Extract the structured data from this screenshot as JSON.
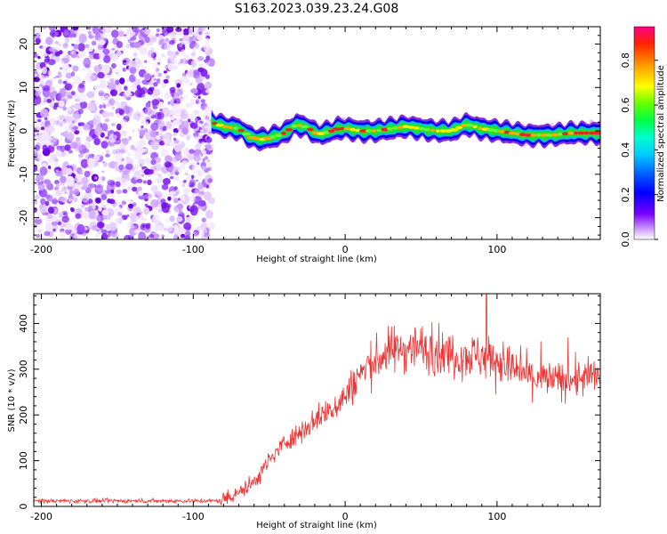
{
  "title": "S163.2023.039.23.24.G08",
  "chart_data": [
    {
      "type": "heatmap",
      "name": "spectrogram",
      "xlabel": "Height of straight line (km)",
      "ylabel": "Frequency (Hz)",
      "xlim": [
        -205,
        168
      ],
      "ylim": [
        -25,
        24
      ],
      "xticks": [
        -200,
        -100,
        0,
        100
      ],
      "xtick_labels": [
        "-200",
        "-100",
        "0",
        "100"
      ],
      "yticks": [
        20,
        10,
        0,
        -10,
        -20
      ],
      "ytick_labels": [
        "20",
        "10",
        "0",
        "-10",
        "-20"
      ],
      "noise_region_x": [
        -205,
        -88
      ],
      "signal_start_x": -88,
      "tone_frequency_track": [
        {
          "x": -88,
          "f": 2.0
        },
        {
          "x": -80,
          "f": 1.0
        },
        {
          "x": -70,
          "f": 0.5
        },
        {
          "x": -62,
          "f": -1.5
        },
        {
          "x": -55,
          "f": -2.0
        },
        {
          "x": -45,
          "f": -1.2
        },
        {
          "x": -40,
          "f": -0.5
        },
        {
          "x": -32,
          "f": 1.5
        },
        {
          "x": -25,
          "f": 0.8
        },
        {
          "x": -18,
          "f": -0.8
        },
        {
          "x": -10,
          "f": -0.2
        },
        {
          "x": -5,
          "f": 0.5
        },
        {
          "x": 0,
          "f": 0.6
        },
        {
          "x": 10,
          "f": 0.0
        },
        {
          "x": 20,
          "f": 0.0
        },
        {
          "x": 30,
          "f": 0.5
        },
        {
          "x": 40,
          "f": 1.0
        },
        {
          "x": 50,
          "f": 0.5
        },
        {
          "x": 60,
          "f": 0.0
        },
        {
          "x": 70,
          "f": 0.0
        },
        {
          "x": 80,
          "f": 1.5
        },
        {
          "x": 90,
          "f": 0.5
        },
        {
          "x": 100,
          "f": 0.0
        },
        {
          "x": 110,
          "f": -0.5
        },
        {
          "x": 120,
          "f": -1.0
        },
        {
          "x": 135,
          "f": -1.0
        },
        {
          "x": 150,
          "f": -0.5
        },
        {
          "x": 168,
          "f": -0.5
        }
      ],
      "colorbar": {
        "label": "Normalized spectral amplitude",
        "range": [
          0.0,
          0.95
        ],
        "ticks": [
          0.0,
          0.2,
          0.4,
          0.6,
          0.8
        ],
        "tick_labels": [
          "0.0",
          "0.2",
          "0.4",
          "0.6",
          "0.8"
        ]
      }
    },
    {
      "type": "line",
      "name": "snr",
      "xlabel": "Height of straight line (km)",
      "ylabel": "SNR (10 * v/v)",
      "xlim": [
        -205,
        168
      ],
      "ylim": [
        0,
        465
      ],
      "xticks": [
        -200,
        -100,
        0,
        100
      ],
      "xtick_labels": [
        "-200",
        "-100",
        "0",
        "100"
      ],
      "yticks": [
        0,
        100,
        200,
        300,
        400
      ],
      "ytick_labels": [
        "0",
        "100",
        "200",
        "300",
        "400"
      ],
      "color": "#ee3333",
      "envelope": [
        {
          "x": -205,
          "snr": 12
        },
        {
          "x": -150,
          "snr": 12
        },
        {
          "x": -100,
          "snr": 12
        },
        {
          "x": -82,
          "snr": 12
        },
        {
          "x": -75,
          "snr": 25
        },
        {
          "x": -62,
          "snr": 45
        },
        {
          "x": -50,
          "snr": 100
        },
        {
          "x": -40,
          "snr": 140
        },
        {
          "x": -30,
          "snr": 160
        },
        {
          "x": -20,
          "snr": 190
        },
        {
          "x": -10,
          "snr": 210
        },
        {
          "x": 0,
          "snr": 240
        },
        {
          "x": 10,
          "snr": 290
        },
        {
          "x": 20,
          "snr": 320
        },
        {
          "x": 30,
          "snr": 340
        },
        {
          "x": 45,
          "snr": 350
        },
        {
          "x": 60,
          "snr": 340
        },
        {
          "x": 75,
          "snr": 330
        },
        {
          "x": 90,
          "snr": 330
        },
        {
          "x": 100,
          "snr": 320
        },
        {
          "x": 110,
          "snr": 300
        },
        {
          "x": 125,
          "snr": 280
        },
        {
          "x": 140,
          "snr": 275
        },
        {
          "x": 155,
          "snr": 280
        },
        {
          "x": 168,
          "snr": 285
        }
      ],
      "peak": {
        "x": 93,
        "snr": 465
      }
    }
  ]
}
